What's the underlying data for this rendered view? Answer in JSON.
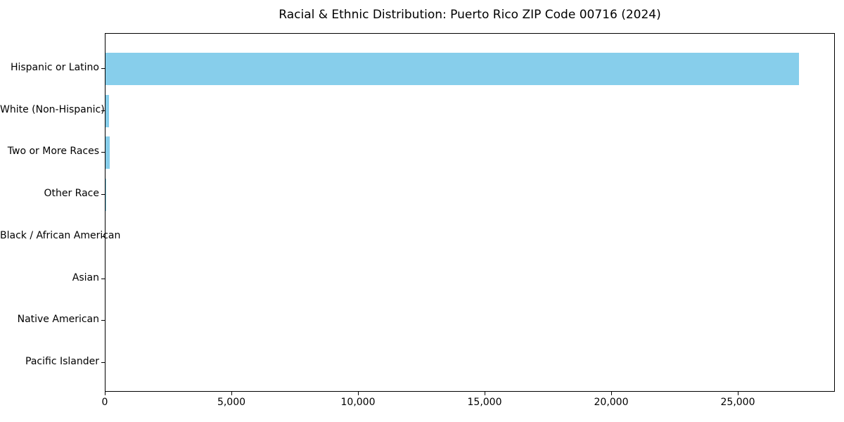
{
  "chart_data": {
    "type": "bar",
    "orientation": "horizontal",
    "title": "Racial & Ethnic Distribution: Puerto Rico ZIP Code 00716 (2024)",
    "categories": [
      "Hispanic or Latino",
      "White (Non-Hispanic)",
      "Two or More Races",
      "Other Race",
      "Black / African American",
      "Asian",
      "Native American",
      "Pacific Islander"
    ],
    "values": [
      27400,
      140,
      165,
      25,
      0,
      0,
      0,
      0
    ],
    "xlabel": "",
    "ylabel": "",
    "xlim": [
      0,
      28833
    ],
    "xticks": [
      0,
      5000,
      10000,
      15000,
      20000,
      25000
    ],
    "xtick_labels": [
      "0",
      "5,000",
      "10,000",
      "15,000",
      "20,000",
      "25,000"
    ],
    "bar_color": "#87CEEB",
    "axis_color": "#000000",
    "background_color": "#FFFFFF",
    "grid": false,
    "legend": null
  }
}
